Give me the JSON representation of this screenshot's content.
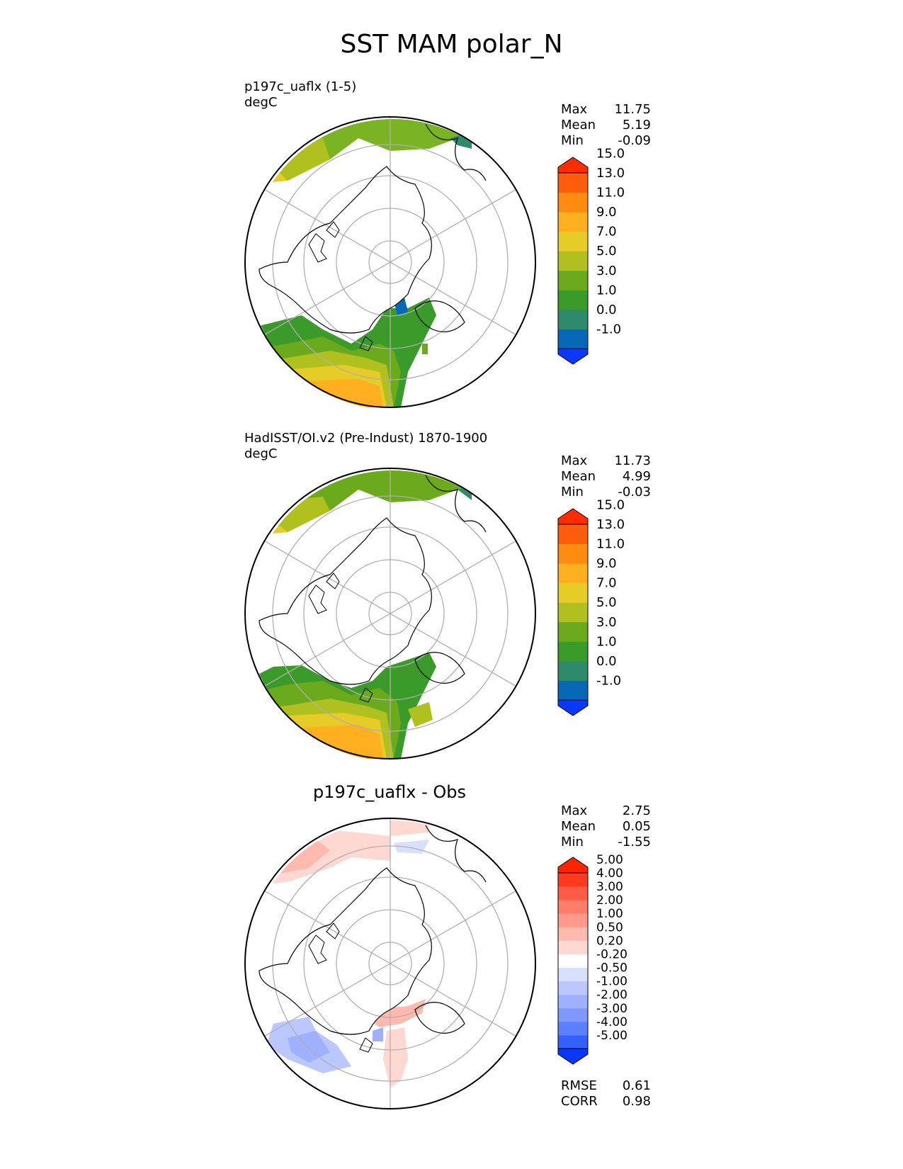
{
  "figure_title": "SST MAM polar_N",
  "panels": [
    {
      "title_line1": "p197c_uaflx (1-5)",
      "title_line2": "degC",
      "stats": [
        {
          "label": "Max",
          "value": "11.75"
        },
        {
          "label": "Mean",
          "value": "5.19"
        },
        {
          "label": "Min",
          "value": "-0.09"
        }
      ]
    },
    {
      "title_line1": "HadISST/OI.v2 (Pre-Indust) 1870-1900",
      "title_line2": "degC",
      "stats": [
        {
          "label": "Max",
          "value": "11.73"
        },
        {
          "label": "Mean",
          "value": "4.99"
        },
        {
          "label": "Min",
          "value": "-0.03"
        }
      ]
    },
    {
      "title": "p197c_uaflx - Obs",
      "stats": [
        {
          "label": "Max",
          "value": "2.75"
        },
        {
          "label": "Mean",
          "value": "0.05"
        },
        {
          "label": "Min",
          "value": "-1.55"
        }
      ],
      "metrics": [
        {
          "label": "RMSE",
          "value": "0.61"
        },
        {
          "label": "CORR",
          "value": "0.98"
        }
      ]
    }
  ],
  "colorbar_field": {
    "levels": [
      "-1.0",
      "0.0",
      "1.0",
      "3.0",
      "5.0",
      "7.0",
      "9.0",
      "11.0",
      "13.0",
      "15.0"
    ],
    "colors": [
      "#0a38ff",
      "#0868b8",
      "#2f8a6c",
      "#3a9a2a",
      "#6aaa1c",
      "#b0c01e",
      "#e6cc26",
      "#ffb020",
      "#ff8c10",
      "#ff5c0c",
      "#ff2c00"
    ]
  },
  "colorbar_diff": {
    "levels": [
      "-5.00",
      "-4.00",
      "-3.00",
      "-2.00",
      "-1.00",
      "-0.50",
      "-0.20",
      "0.20",
      "0.50",
      "1.00",
      "2.00",
      "3.00",
      "4.00",
      "5.00"
    ],
    "colors": [
      "#0a36ff",
      "#3360ff",
      "#5c80ff",
      "#7f98ff",
      "#9fb0ff",
      "#bac8ff",
      "#d8e0ff",
      "#ffffff",
      "#ffd8d2",
      "#ffbab0",
      "#ff9a8a",
      "#ff7e6a",
      "#ff5c46",
      "#ff3a1e",
      "#ff2400"
    ]
  }
}
